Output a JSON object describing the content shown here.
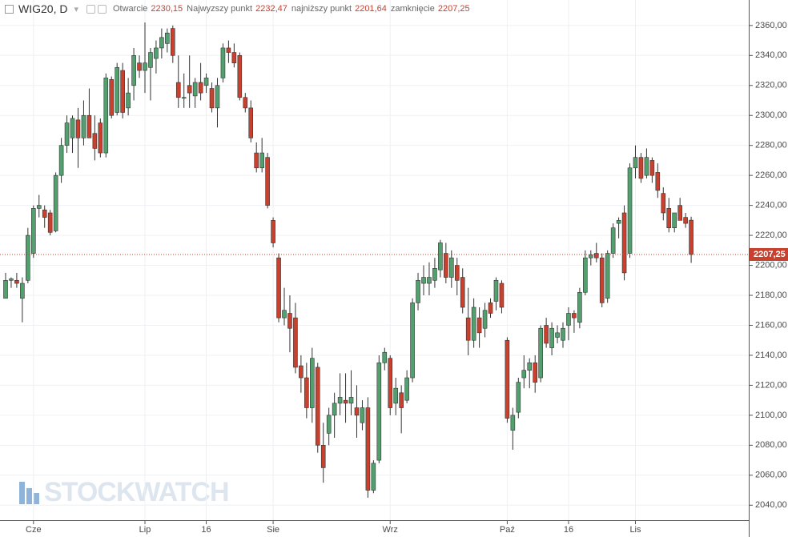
{
  "chart_data": {
    "type": "candlestick",
    "header": {
      "symbol": "WIG20, D",
      "fields": [
        {
          "name": "Otwarcie",
          "value": "2230,15"
        },
        {
          "name": "Najwyzszy punkt",
          "value": "2232,47"
        },
        {
          "name": "najniższy punkt",
          "value": "2201,64"
        },
        {
          "name": "zamknięcie",
          "value": "2207,25"
        }
      ]
    },
    "watermark": "STOCKWATCH",
    "categories": [
      null,
      null,
      null,
      null,
      null,
      "Cze",
      null,
      null,
      null,
      null,
      null,
      null,
      null,
      null,
      null,
      null,
      null,
      null,
      null,
      null,
      null,
      null,
      null,
      null,
      null,
      "Lip",
      null,
      null,
      null,
      null,
      null,
      null,
      null,
      null,
      null,
      null,
      "16",
      null,
      null,
      null,
      null,
      null,
      null,
      null,
      null,
      null,
      null,
      null,
      "Sie",
      null,
      null,
      null,
      null,
      null,
      null,
      null,
      null,
      null,
      null,
      null,
      null,
      null,
      null,
      null,
      null,
      null,
      null,
      null,
      null,
      "Wrz",
      null,
      null,
      null,
      null,
      null,
      null,
      null,
      null,
      null,
      null,
      null,
      null,
      null,
      null,
      null,
      null,
      null,
      null,
      null,
      null,
      "Paź",
      null,
      null,
      null,
      null,
      null,
      null,
      null,
      null,
      null,
      null,
      "16",
      null,
      null,
      null,
      null,
      null,
      null,
      null,
      null,
      null,
      null,
      null,
      "Lis",
      null,
      null,
      null,
      null,
      null,
      null,
      null,
      null,
      null,
      null
    ],
    "open": [
      2178,
      2190,
      2190,
      2178,
      2190,
      2208,
      2238,
      2237,
      2235,
      2223,
      2260,
      2280,
      2285,
      2297,
      2285,
      2300,
      2288,
      2295,
      2275,
      2324,
      2302,
      2330,
      2305,
      2320,
      2335,
      2330,
      2332,
      2338,
      2345,
      2348,
      2358,
      2322,
      2312,
      2320,
      2313,
      2322,
      2320,
      2318,
      2305,
      2325,
      2345,
      2342,
      2340,
      2312,
      2305,
      2275,
      2265,
      2272,
      2230,
      2205,
      2165,
      2168,
      2165,
      2133,
      2125,
      2105,
      2132,
      2080,
      2088,
      2100,
      2108,
      2110,
      2108,
      2105,
      2095,
      2105,
      2050,
      2070,
      2135,
      2138,
      2108,
      2115,
      2110,
      2125,
      2175,
      2188,
      2188,
      2190,
      2197,
      2208,
      2192,
      2200,
      2192,
      2165,
      2150,
      2165,
      2158,
      2175,
      2176,
      2188,
      2150,
      2090,
      2102,
      2125,
      2130,
      2135,
      2125,
      2160,
      2145,
      2152,
      2150,
      2160,
      2168,
      2162,
      2182,
      2205,
      2208,
      2205,
      2178,
      2208,
      2228,
      2235,
      2208,
      2265,
      2272,
      2260,
      2270,
      2262,
      2248,
      2238,
      2225,
      2240,
      2232,
      2230.15
    ],
    "high": [
      2195,
      2192,
      2195,
      2192,
      2225,
      2240,
      2247,
      2240,
      2237,
      2262,
      2285,
      2300,
      2300,
      2305,
      2310,
      2318,
      2300,
      2298,
      2328,
      2326,
      2335,
      2335,
      2325,
      2345,
      2340,
      2362,
      2345,
      2350,
      2358,
      2358,
      2360,
      2340,
      2328,
      2340,
      2325,
      2335,
      2328,
      2322,
      2325,
      2348,
      2350,
      2348,
      2342,
      2315,
      2310,
      2282,
      2285,
      2275,
      2232,
      2208,
      2185,
      2180,
      2175,
      2140,
      2135,
      2145,
      2135,
      2095,
      2105,
      2115,
      2128,
      2128,
      2130,
      2120,
      2110,
      2112,
      2070,
      2140,
      2145,
      2140,
      2125,
      2120,
      2130,
      2178,
      2195,
      2200,
      2202,
      2205,
      2217,
      2215,
      2210,
      2205,
      2198,
      2185,
      2178,
      2172,
      2175,
      2178,
      2192,
      2190,
      2152,
      2105,
      2125,
      2140,
      2138,
      2140,
      2160,
      2165,
      2162,
      2160,
      2162,
      2172,
      2170,
      2185,
      2210,
      2210,
      2215,
      2208,
      2210,
      2228,
      2232,
      2240,
      2268,
      2280,
      2275,
      2278,
      2272,
      2268,
      2252,
      2245,
      2235,
      2245,
      2235,
      2232.47
    ],
    "low": [
      2178,
      2185,
      2185,
      2162,
      2188,
      2205,
      2232,
      2225,
      2220,
      2222,
      2255,
      2275,
      2275,
      2265,
      2280,
      2285,
      2270,
      2272,
      2272,
      2298,
      2300,
      2298,
      2300,
      2310,
      2325,
      2315,
      2310,
      2328,
      2338,
      2342,
      2335,
      2305,
      2305,
      2305,
      2305,
      2310,
      2315,
      2302,
      2292,
      2322,
      2335,
      2332,
      2310,
      2302,
      2282,
      2262,
      2262,
      2238,
      2212,
      2162,
      2160,
      2142,
      2128,
      2115,
      2098,
      2095,
      2075,
      2055,
      2080,
      2085,
      2100,
      2095,
      2100,
      2085,
      2090,
      2045,
      2048,
      2068,
      2130,
      2100,
      2100,
      2088,
      2108,
      2122,
      2170,
      2180,
      2180,
      2185,
      2192,
      2188,
      2185,
      2180,
      2168,
      2140,
      2145,
      2145,
      2152,
      2165,
      2170,
      2168,
      2095,
      2077,
      2098,
      2118,
      2118,
      2115,
      2122,
      2145,
      2140,
      2148,
      2145,
      2150,
      2155,
      2158,
      2180,
      2200,
      2202,
      2172,
      2175,
      2205,
      2218,
      2190,
      2205,
      2258,
      2255,
      2258,
      2255,
      2245,
      2230,
      2222,
      2222,
      2230,
      2225,
      2201.64
    ],
    "close": [
      2190,
      2191,
      2188,
      2188,
      2220,
      2238,
      2240,
      2232,
      2222,
      2260,
      2280,
      2295,
      2298,
      2285,
      2300,
      2285,
      2278,
      2275,
      2325,
      2300,
      2332,
      2302,
      2315,
      2340,
      2330,
      2335,
      2342,
      2345,
      2352,
      2355,
      2340,
      2312,
      2312,
      2315,
      2322,
      2315,
      2325,
      2305,
      2320,
      2345,
      2342,
      2335,
      2312,
      2305,
      2285,
      2265,
      2275,
      2240,
      2215,
      2165,
      2170,
      2158,
      2132,
      2125,
      2105,
      2138,
      2080,
      2065,
      2100,
      2108,
      2112,
      2108,
      2112,
      2100,
      2105,
      2050,
      2068,
      2135,
      2142,
      2105,
      2118,
      2105,
      2125,
      2175,
      2190,
      2192,
      2192,
      2198,
      2215,
      2192,
      2205,
      2190,
      2172,
      2150,
      2172,
      2155,
      2170,
      2168,
      2190,
      2172,
      2098,
      2100,
      2122,
      2130,
      2135,
      2122,
      2158,
      2148,
      2158,
      2155,
      2158,
      2168,
      2165,
      2182,
      2205,
      2207,
      2205,
      2175,
      2208,
      2225,
      2230,
      2195,
      2265,
      2272,
      2258,
      2272,
      2260,
      2250,
      2235,
      2225,
      2235,
      2230,
      2228,
      2207.25
    ],
    "up_color": "#53a06f",
    "down_color": "#c8402e",
    "ylim": [
      2030,
      2377
    ],
    "yticks": [
      {
        "value": 2040,
        "label": "2040,00"
      },
      {
        "value": 2060,
        "label": "2060,00"
      },
      {
        "value": 2080,
        "label": "2080,00"
      },
      {
        "value": 2100,
        "label": "2100,00"
      },
      {
        "value": 2120,
        "label": "2120,00"
      },
      {
        "value": 2140,
        "label": "2140,00"
      },
      {
        "value": 2160,
        "label": "2160,00"
      },
      {
        "value": 2180,
        "label": "2180,00"
      },
      {
        "value": 2200,
        "label": "2200,00"
      },
      {
        "value": 2220,
        "label": "2220,00"
      },
      {
        "value": 2240,
        "label": "2240,00"
      },
      {
        "value": 2260,
        "label": "2260,00"
      },
      {
        "value": 2280,
        "label": "2280,00"
      },
      {
        "value": 2300,
        "label": "2300,00"
      },
      {
        "value": 2320,
        "label": "2320,00"
      },
      {
        "value": 2340,
        "label": "2340,00"
      },
      {
        "value": 2360,
        "label": "2360,00"
      }
    ],
    "last_price": {
      "value": 2207.25,
      "label": "2207,25"
    },
    "grid": true
  }
}
